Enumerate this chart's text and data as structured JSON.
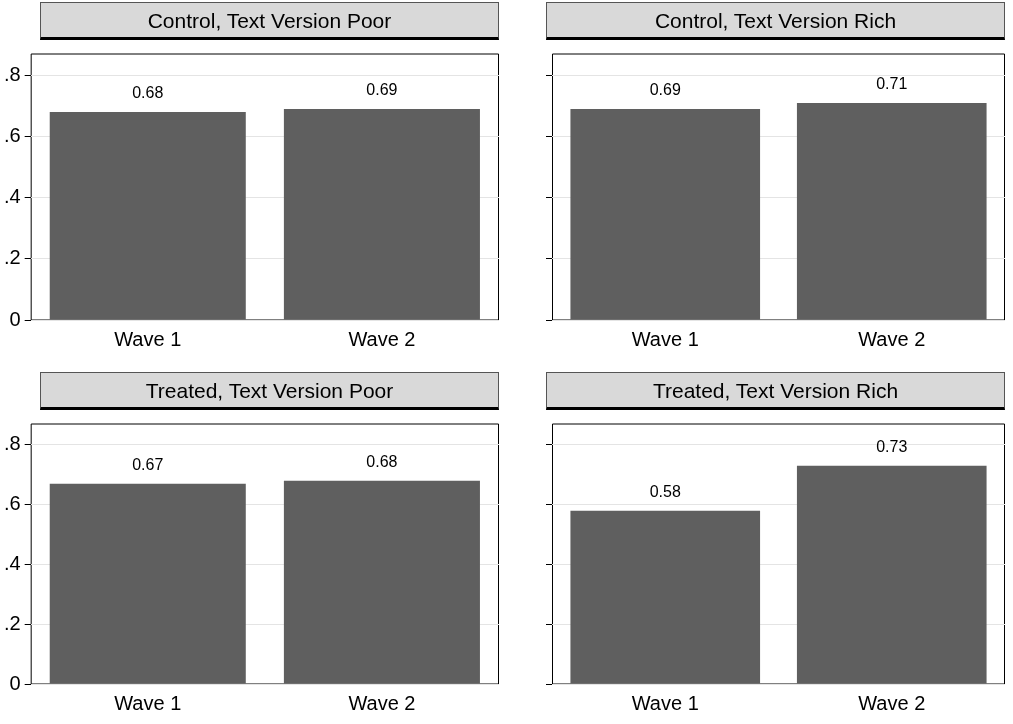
{
  "chart_data": [
    {
      "type": "bar",
      "title": "Control, Text Version Poor",
      "categories": [
        "Wave 1",
        "Wave 2"
      ],
      "values": [
        0.68,
        0.69
      ],
      "color": "#5f5f5f",
      "ylim": [
        0,
        0.87
      ],
      "yticks": [
        0,
        {
          "value": 0.2,
          "label": ".2"
        },
        {
          "value": 0.4,
          "label": ".4"
        },
        {
          "value": 0.6,
          "label": ".6"
        },
        {
          "value": 0.8,
          "label": ".8"
        }
      ],
      "grid": "y",
      "data_labels": true
    },
    {
      "type": "bar",
      "title": "Control, Text Version Rich",
      "categories": [
        "Wave 1",
        "Wave 2"
      ],
      "values": [
        0.69,
        0.71
      ],
      "color": "#5f5f5f",
      "ylim": [
        0,
        0.87
      ],
      "yticks": [
        0,
        0.2,
        0.4,
        0.6,
        0.8
      ],
      "grid": "y",
      "data_labels": true,
      "tick_labels": "x"
    },
    {
      "type": "bar",
      "title": "Treated, Text Version Poor",
      "categories": [
        "Wave 1",
        "Wave 2"
      ],
      "values": [
        0.67,
        0.68
      ],
      "color": "#5f5f5f",
      "ylim": [
        0,
        0.87
      ],
      "yticks": [
        0,
        {
          "value": 0.2,
          "label": ".2"
        },
        {
          "value": 0.4,
          "label": ".4"
        },
        {
          "value": 0.6,
          "label": ".6"
        },
        {
          "value": 0.8,
          "label": ".8"
        }
      ],
      "grid": "y",
      "data_labels": true
    },
    {
      "type": "bar",
      "title": "Treated, Text Version Rich",
      "categories": [
        "Wave 1",
        "Wave 2"
      ],
      "values": [
        0.58,
        0.73
      ],
      "color": "#5f5f5f",
      "ylim": [
        0,
        0.87
      ],
      "yticks": [
        0,
        0.2,
        0.4,
        0.6,
        0.8
      ],
      "grid": "y",
      "data_labels": true,
      "tick_labels": "x"
    }
  ]
}
